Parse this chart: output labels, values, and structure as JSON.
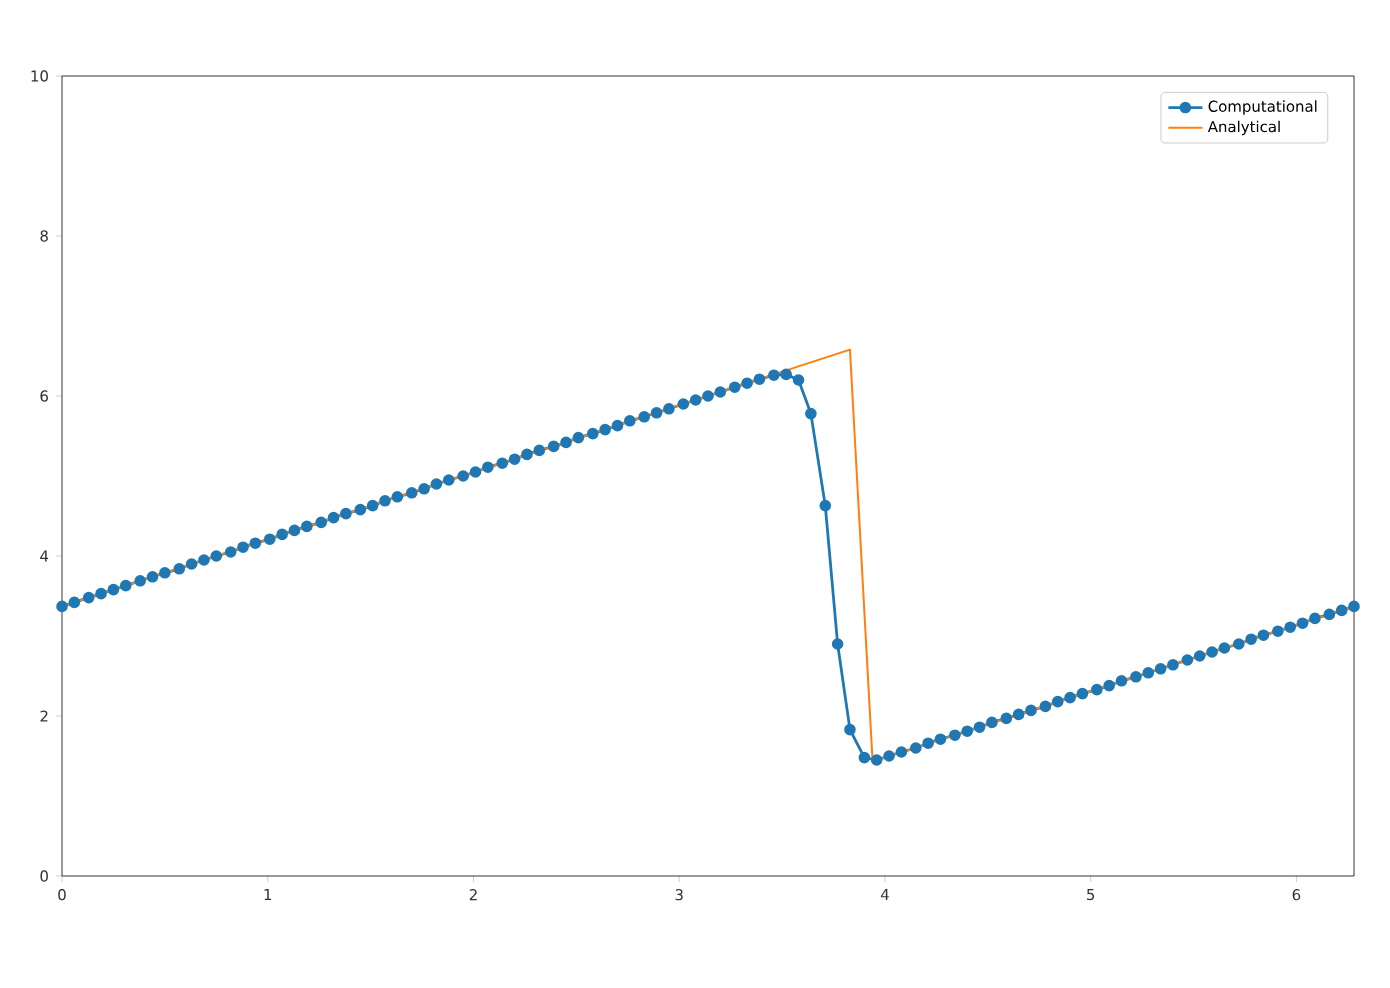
{
  "chart_data": {
    "type": "line",
    "xlim": [
      0,
      6.28
    ],
    "ylim": [
      0,
      10
    ],
    "xticks": [
      0,
      1,
      2,
      3,
      4,
      5,
      6
    ],
    "yticks": [
      0,
      2,
      4,
      6,
      8,
      10
    ],
    "legend": "top right",
    "series": [
      {
        "name": "Computational",
        "color": "#1f77b4",
        "marker": "circle",
        "x": [
          0.0,
          0.06,
          0.13,
          0.19,
          0.25,
          0.31,
          0.38,
          0.44,
          0.5,
          0.57,
          0.63,
          0.69,
          0.75,
          0.82,
          0.88,
          0.94,
          1.01,
          1.07,
          1.13,
          1.19,
          1.26,
          1.32,
          1.38,
          1.45,
          1.51,
          1.57,
          1.63,
          1.7,
          1.76,
          1.82,
          1.88,
          1.95,
          2.01,
          2.07,
          2.14,
          2.2,
          2.26,
          2.32,
          2.39,
          2.45,
          2.51,
          2.58,
          2.64,
          2.7,
          2.76,
          2.83,
          2.89,
          2.95,
          3.02,
          3.08,
          3.14,
          3.2,
          3.27,
          3.33,
          3.39,
          3.46,
          3.52,
          3.58,
          3.64,
          3.71,
          3.77,
          3.83,
          3.9,
          3.96,
          4.02,
          4.08,
          4.15,
          4.21,
          4.27,
          4.34,
          4.4,
          4.46,
          4.52,
          4.59,
          4.65,
          4.71,
          4.78,
          4.84,
          4.9,
          4.96,
          5.03,
          5.09,
          5.15,
          5.22,
          5.28,
          5.34,
          5.4,
          5.47,
          5.53,
          5.59,
          5.65,
          5.72,
          5.78,
          5.84,
          5.91,
          5.97,
          6.03,
          6.09,
          6.16,
          6.22,
          6.28
        ],
        "values": [
          3.37,
          3.42,
          3.48,
          3.53,
          3.58,
          3.63,
          3.69,
          3.74,
          3.79,
          3.84,
          3.9,
          3.95,
          4.0,
          4.05,
          4.11,
          4.16,
          4.21,
          4.27,
          4.32,
          4.37,
          4.42,
          4.48,
          4.53,
          4.58,
          4.63,
          4.69,
          4.74,
          4.79,
          4.84,
          4.9,
          4.95,
          5.0,
          5.05,
          5.11,
          5.16,
          5.21,
          5.27,
          5.32,
          5.37,
          5.42,
          5.48,
          5.53,
          5.58,
          5.63,
          5.69,
          5.74,
          5.79,
          5.84,
          5.9,
          5.95,
          6.0,
          6.05,
          6.11,
          6.16,
          6.21,
          6.26,
          6.27,
          6.2,
          5.78,
          4.63,
          2.9,
          1.83,
          1.48,
          1.45,
          1.5,
          1.55,
          1.6,
          1.66,
          1.71,
          1.76,
          1.81,
          1.86,
          1.92,
          1.97,
          2.02,
          2.07,
          2.12,
          2.18,
          2.23,
          2.28,
          2.33,
          2.38,
          2.44,
          2.49,
          2.54,
          2.59,
          2.64,
          2.7,
          2.75,
          2.8,
          2.85,
          2.9,
          2.96,
          3.01,
          3.06,
          3.11,
          3.16,
          3.22,
          3.27,
          3.32,
          3.37
        ]
      },
      {
        "name": "Analytical",
        "color": "#ff7f0e",
        "marker": "none",
        "x": [
          0,
          3.83,
          3.94,
          6.28
        ],
        "values": [
          3.37,
          6.58,
          1.43,
          3.37
        ]
      }
    ]
  }
}
